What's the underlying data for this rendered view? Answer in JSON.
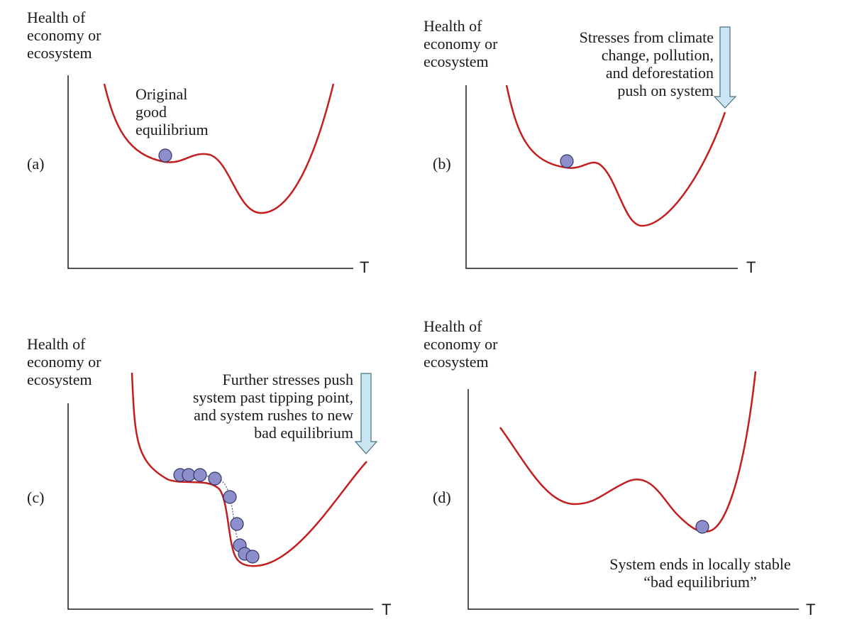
{
  "panels": {
    "a": {
      "tag": "(a)",
      "ylabel": [
        "Health of",
        "economy or",
        "ecosystem"
      ],
      "xlabel": "T",
      "note": [
        "Original",
        "good",
        "equilibrium"
      ]
    },
    "b": {
      "tag": "(b)",
      "ylabel": [
        "Health of",
        "economy or",
        "ecosystem"
      ],
      "xlabel": "T",
      "note": [
        "Stresses from climate",
        "change, pollution,",
        "and deforestation",
        "push on system"
      ]
    },
    "c": {
      "tag": "(c)",
      "ylabel": [
        "Health of",
        "economy or",
        "ecosystem"
      ],
      "xlabel": "T",
      "note": [
        "Further stresses push",
        "system past tipping point,",
        "and system rushes to new",
        "bad equilibrium"
      ]
    },
    "d": {
      "tag": "(d)",
      "ylabel": [
        "Health of",
        "economy or",
        "ecosystem"
      ],
      "xlabel": "T",
      "note": [
        "System ends in locally stable",
        "“bad equilibrium”"
      ]
    }
  },
  "colors": {
    "curve": "#c41e1e",
    "ball_fill": "#8c8fcc",
    "ball_stroke": "#333366",
    "arrow_fill": "#c9e6f2",
    "arrow_stroke": "#4a6f80",
    "axis": "#1a1a1a"
  }
}
